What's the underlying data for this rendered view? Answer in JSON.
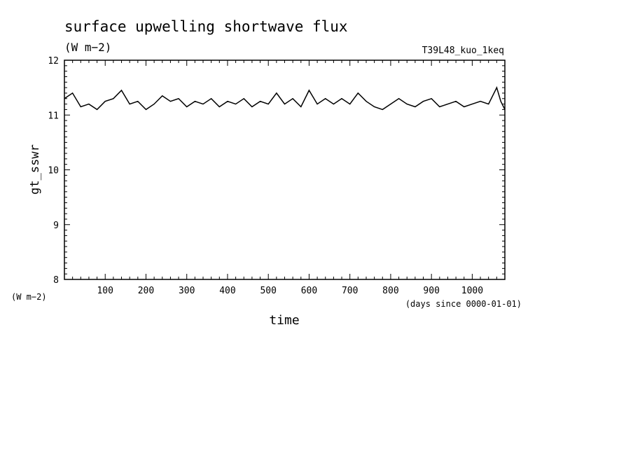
{
  "chart_data": {
    "type": "line",
    "title": "surface upwelling shortwave flux",
    "units": "(W m−2)",
    "run_label": "T39L48_kuo_1keq",
    "ylabel": "gt_sswr",
    "y_units": "(W m−2)",
    "xlabel": "time",
    "x_units": "(days since 0000-01-01)",
    "xlim": [
      0,
      1080
    ],
    "ylim": [
      8,
      12
    ],
    "x_ticks": [
      100,
      200,
      300,
      400,
      500,
      600,
      700,
      800,
      900,
      1000
    ],
    "y_ticks": [
      8,
      9,
      10,
      11,
      12
    ],
    "grid": false,
    "series": [
      {
        "x": [
          0,
          20,
          40,
          60,
          80,
          100,
          120,
          140,
          160,
          180,
          200,
          220,
          240,
          260,
          280,
          300,
          320,
          340,
          360,
          380,
          400,
          420,
          440,
          460,
          480,
          500,
          520,
          540,
          560,
          580,
          600,
          620,
          640,
          660,
          680,
          700,
          720,
          740,
          760,
          780,
          800,
          820,
          840,
          860,
          880,
          900,
          920,
          940,
          960,
          980,
          1000,
          1020,
          1040,
          1060,
          1070,
          1080
        ],
        "values": [
          11.3,
          11.4,
          11.15,
          11.2,
          11.1,
          11.25,
          11.3,
          11.45,
          11.2,
          11.25,
          11.1,
          11.2,
          11.35,
          11.25,
          11.3,
          11.15,
          11.25,
          11.2,
          11.3,
          11.15,
          11.25,
          11.2,
          11.3,
          11.15,
          11.25,
          11.2,
          11.4,
          11.2,
          11.3,
          11.15,
          11.45,
          11.2,
          11.3,
          11.2,
          11.3,
          11.2,
          11.4,
          11.25,
          11.15,
          11.1,
          11.2,
          11.3,
          11.2,
          11.15,
          11.25,
          11.3,
          11.15,
          11.2,
          11.25,
          11.15,
          11.2,
          11.25,
          11.2,
          11.5,
          11.25,
          11.1
        ]
      }
    ]
  }
}
